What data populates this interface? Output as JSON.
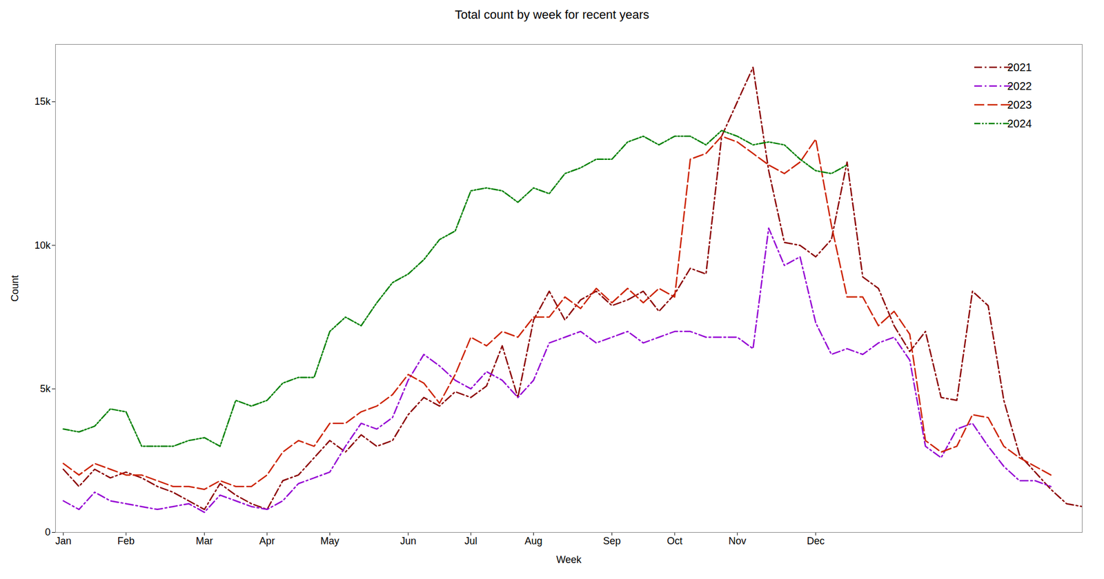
{
  "chart_data": {
    "type": "line",
    "title": "Total count by week for recent years",
    "xlabel": "Week",
    "ylabel": "Count",
    "xlim": [
      -0.5,
      65
    ],
    "xticks": [
      {
        "value": 0,
        "label": "Jan"
      },
      {
        "value": 4,
        "label": "Feb"
      },
      {
        "value": 9,
        "label": "Mar"
      },
      {
        "value": 13,
        "label": "Apr"
      },
      {
        "value": 17,
        "label": "May"
      },
      {
        "value": 22,
        "label": "Jun"
      },
      {
        "value": 26,
        "label": "Jul"
      },
      {
        "value": 30,
        "label": "Aug"
      },
      {
        "value": 35,
        "label": "Sep"
      },
      {
        "value": 39,
        "label": "Oct"
      },
      {
        "value": 43,
        "label": "Nov"
      },
      {
        "value": 48,
        "label": "Dec"
      }
    ],
    "ylim": [
      0,
      17000
    ],
    "yticks": [
      0,
      {
        "value": 5000,
        "label": "5k"
      },
      {
        "value": 10000,
        "label": "10k"
      },
      {
        "value": 15000,
        "label": "15k"
      }
    ],
    "grid": false,
    "legend": "upper right",
    "series": [
      {
        "name": "2021",
        "color": "#8B0000",
        "line_style": "dashdot",
        "x": [
          0,
          1,
          2,
          3,
          4,
          5,
          6,
          7,
          8,
          9,
          10,
          11,
          12,
          13,
          14,
          15,
          16,
          17,
          18,
          19,
          20,
          21,
          22,
          23,
          24,
          25,
          26,
          27,
          28,
          29,
          30,
          31,
          32,
          33,
          34,
          35,
          36,
          37,
          38,
          39,
          40,
          41,
          42,
          43,
          44,
          45,
          46,
          47,
          48,
          49,
          50,
          51,
          52,
          53,
          54,
          55,
          56,
          57,
          58,
          59,
          60,
          61,
          62,
          63,
          64,
          65
        ],
        "values": [
          2200,
          1600,
          2200,
          1900,
          2100,
          1900,
          1600,
          1400,
          1100,
          800,
          1700,
          1300,
          1000,
          800,
          1800,
          2000,
          2600,
          3200,
          2800,
          3400,
          3000,
          3200,
          4100,
          4700,
          4400,
          4900,
          4700,
          5100,
          6500,
          4700,
          7400,
          8400,
          7400,
          8100,
          8400,
          7900,
          8100,
          8400,
          7700,
          8300,
          9200,
          9000,
          13800,
          15000,
          16200,
          12600,
          10100,
          10000,
          9600,
          10200,
          12900,
          8900,
          8500,
          7200,
          6300,
          7000,
          4700,
          4600,
          8400,
          7900,
          4600,
          2700,
          2100,
          1500,
          1000,
          900
        ]
      },
      {
        "name": "2022",
        "color": "#9400D3",
        "line_style": "dashdot",
        "x": [
          0,
          1,
          2,
          3,
          4,
          5,
          6,
          7,
          8,
          9,
          10,
          11,
          12,
          13,
          14,
          15,
          16,
          17,
          18,
          19,
          20,
          21,
          22,
          23,
          24,
          25,
          26,
          27,
          28,
          29,
          30,
          31,
          32,
          33,
          34,
          35,
          36,
          37,
          38,
          39,
          40,
          41,
          42,
          43,
          44,
          45,
          46,
          47,
          48,
          49,
          50,
          51,
          52,
          53,
          54,
          55,
          56,
          57,
          58,
          59,
          60,
          61,
          62,
          63
        ],
        "values": [
          1100,
          800,
          1400,
          1100,
          1000,
          900,
          800,
          900,
          1000,
          700,
          1300,
          1100,
          900,
          800,
          1100,
          1700,
          1900,
          2100,
          3000,
          3800,
          3600,
          4000,
          5300,
          6200,
          5800,
          5300,
          5000,
          5600,
          5300,
          4700,
          5300,
          6600,
          6800,
          7000,
          6600,
          6800,
          7000,
          6600,
          6800,
          7000,
          7000,
          6800,
          6800,
          6800,
          6400,
          10600,
          9300,
          9600,
          7300,
          6200,
          6400,
          6200,
          6600,
          6800,
          6000,
          3000,
          2600,
          3600,
          3800,
          3000,
          2300,
          1800,
          1800,
          1600
        ]
      },
      {
        "name": "2023",
        "color": "#CC2200",
        "line_style": "dashed",
        "x": [
          0,
          1,
          2,
          3,
          4,
          5,
          6,
          7,
          8,
          9,
          10,
          11,
          12,
          13,
          14,
          15,
          16,
          17,
          18,
          19,
          20,
          21,
          22,
          23,
          24,
          25,
          26,
          27,
          28,
          29,
          30,
          31,
          32,
          33,
          34,
          35,
          36,
          37,
          38,
          39,
          40,
          41,
          42,
          43,
          44,
          45,
          46,
          47,
          48,
          49,
          50,
          51,
          52,
          53,
          54,
          55,
          56,
          57,
          58,
          59,
          60,
          61,
          62,
          63
        ],
        "values": [
          2400,
          2000,
          2400,
          2200,
          2000,
          2000,
          1800,
          1600,
          1600,
          1500,
          1800,
          1600,
          1600,
          2000,
          2800,
          3200,
          3000,
          3800,
          3800,
          4200,
          4400,
          4800,
          5500,
          5200,
          4500,
          5500,
          6800,
          6500,
          7000,
          6800,
          7500,
          7500,
          8200,
          7800,
          8500,
          8000,
          8500,
          8000,
          8500,
          8200,
          13000,
          13200,
          13800,
          13600,
          13200,
          12800,
          12500,
          12900,
          13700,
          10700,
          8200,
          8200,
          7200,
          7700,
          6900,
          3200,
          2800,
          3000,
          4100,
          4000,
          3000,
          2600,
          2300,
          2000
        ]
      },
      {
        "name": "2024",
        "color": "#008000",
        "line_style": "dashdotdot",
        "x": [
          0,
          1,
          2,
          3,
          4,
          5,
          6,
          7,
          8,
          9,
          10,
          11,
          12,
          13,
          14,
          15,
          16,
          17,
          18,
          19,
          20,
          21,
          22,
          23,
          24,
          25,
          26,
          27,
          28,
          29,
          30,
          31,
          32,
          33,
          34,
          35,
          36,
          37,
          38,
          39,
          40,
          41,
          42,
          43,
          44,
          45,
          46,
          47,
          48,
          49,
          50
        ],
        "values": [
          3600,
          3500,
          3700,
          4300,
          4200,
          3000,
          3000,
          3000,
          3200,
          3300,
          3000,
          4600,
          4400,
          4600,
          5200,
          5400,
          5400,
          7000,
          7500,
          7200,
          8000,
          8700,
          9000,
          9500,
          10200,
          10500,
          11900,
          12000,
          11900,
          11500,
          12000,
          11800,
          12500,
          12700,
          13000,
          13000,
          13600,
          13800,
          13500,
          13800,
          13800,
          13500,
          14000,
          13800,
          13500,
          13600,
          13500,
          13000,
          12600,
          12500,
          12800
        ]
      }
    ]
  }
}
